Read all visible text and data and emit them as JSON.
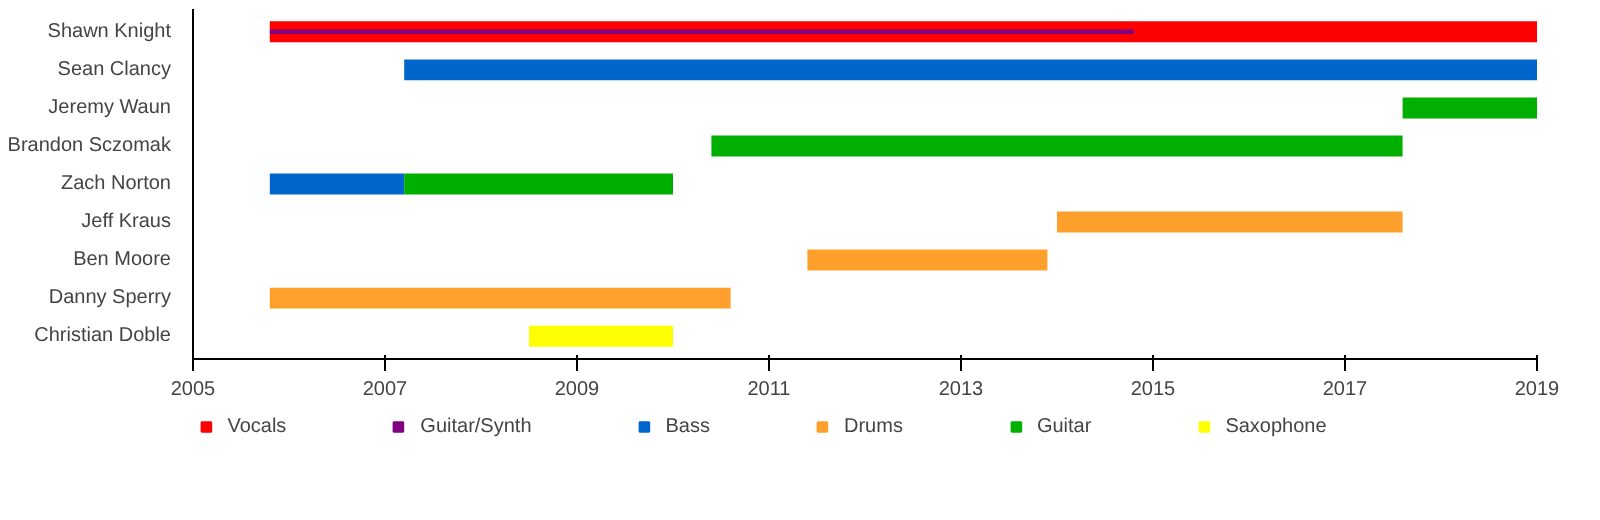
{
  "chart_data": {
    "type": "bar",
    "orientation": "horizontal",
    "categories": [
      "Shawn Knight",
      "Sean Clancy",
      "Jeremy Waun",
      "Brandon Sczomak",
      "Zach Norton",
      "Jeff Kraus",
      "Ben Moore",
      "Danny Sperry",
      "Christian Doble"
    ],
    "xlim": [
      2005,
      2019
    ],
    "xticks": [
      2005,
      2007,
      2009,
      2011,
      2013,
      2015,
      2017,
      2019
    ],
    "grid": false,
    "legend": "bottom",
    "series": [
      {
        "name": "Vocals",
        "color": "#ff0000",
        "base": [
          2005.8,
          null,
          null,
          null,
          null,
          null,
          null,
          null,
          null
        ],
        "values": [
          13.2,
          null,
          null,
          null,
          null,
          null,
          null,
          null,
          null
        ]
      },
      {
        "name": "Guitar/Synth",
        "color": "#800080",
        "base": [
          2005.8,
          null,
          null,
          null,
          null,
          null,
          null,
          null,
          null
        ],
        "values": [
          9.0,
          null,
          null,
          null,
          null,
          null,
          null,
          null,
          null
        ]
      },
      {
        "name": "Bass",
        "color": "#0066cc",
        "base": [
          null,
          2007.2,
          null,
          null,
          2005.8,
          null,
          null,
          null,
          null
        ],
        "values": [
          null,
          11.8,
          null,
          null,
          1.4,
          null,
          null,
          null,
          null
        ]
      },
      {
        "name": "Drums",
        "color": "#ffa02c",
        "base": [
          null,
          null,
          null,
          null,
          null,
          2014.0,
          2011.4,
          2005.8,
          null
        ],
        "values": [
          null,
          null,
          null,
          null,
          null,
          3.6,
          2.5,
          4.8,
          null
        ]
      },
      {
        "name": "Guitar",
        "color": "#00b000",
        "base": [
          null,
          null,
          2017.6,
          2010.4,
          2007.2,
          null,
          null,
          null,
          null
        ],
        "values": [
          null,
          null,
          1.4,
          7.2,
          2.8,
          null,
          null,
          null,
          null
        ]
      },
      {
        "name": "Saxophone",
        "color": "#ffff00",
        "base": [
          null,
          null,
          null,
          null,
          null,
          null,
          null,
          null,
          2008.5
        ],
        "values": [
          null,
          null,
          null,
          null,
          null,
          null,
          null,
          null,
          1.5
        ]
      }
    ]
  }
}
